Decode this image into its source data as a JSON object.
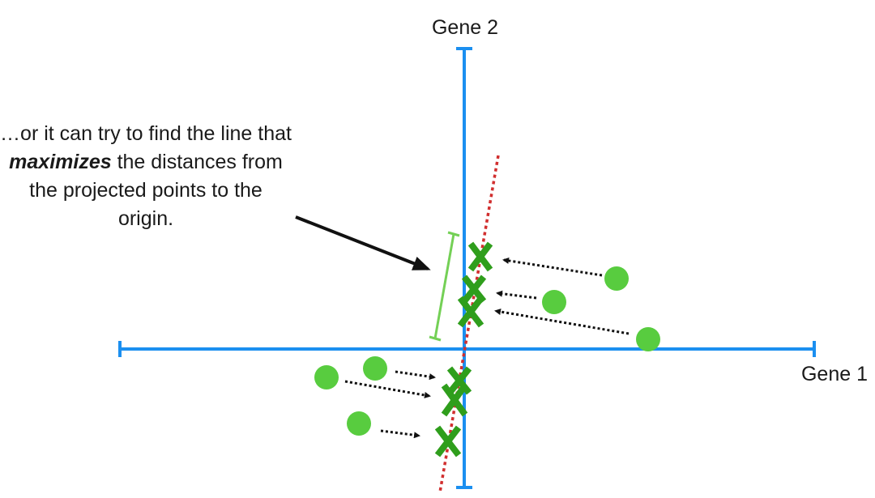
{
  "axes": {
    "x_label": "Gene 1",
    "y_label": "Gene 2"
  },
  "annotation": {
    "before": "…or it can try to find the line that ",
    "emphasis": "maximizes",
    "after": " the distances from the projected points to the origin."
  },
  "colors": {
    "axis": "#1b8ff0",
    "points": "#58cc3f",
    "projections": "#2f9e1c",
    "fit_line": "#d12f2f",
    "distance_bracket": "#74d056",
    "arrows": "#111111"
  }
}
